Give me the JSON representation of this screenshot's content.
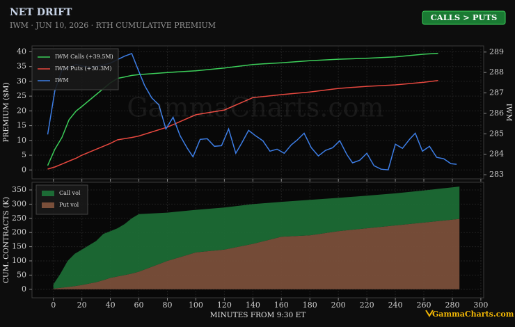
{
  "header": {
    "title": "NET DRIFT",
    "subtitle": "IWM · JUN 10, 2026 · RTH CUMULATIVE PREMIUM"
  },
  "badge": "CALLS > PUTS",
  "watermark": "GammaCharts.com",
  "brand": "GammaCharts.com",
  "chart_data": [
    {
      "type": "line",
      "ylabel": "PREMIUM ($M)",
      "y2label": "IWM",
      "xlim": [
        -15,
        302
      ],
      "ylim": [
        -3,
        42
      ],
      "y2lim": [
        282.8,
        289.3
      ],
      "yticks": [
        0,
        5,
        10,
        15,
        20,
        25,
        30,
        35,
        40
      ],
      "y2ticks": [
        283,
        284,
        285,
        286,
        287,
        288,
        289
      ],
      "grid": true,
      "legend": "upper left",
      "series": [
        {
          "name": "IWM Calls (+39.5M)",
          "color": "#3ccf5a",
          "x": [
            -4,
            1,
            6,
            11,
            16,
            20,
            25,
            30,
            35,
            40,
            45,
            50,
            55,
            60,
            80,
            100,
            120,
            140,
            160,
            180,
            200,
            220,
            240,
            260,
            270
          ],
          "values": [
            1.5,
            7,
            11,
            17,
            20,
            21.5,
            23.5,
            25.5,
            27.5,
            29.5,
            31,
            31.5,
            32,
            32.3,
            33,
            33.6,
            34.5,
            35.7,
            36.3,
            37,
            37.5,
            37.8,
            38.3,
            39.2,
            39.5
          ]
        },
        {
          "name": "IWM Puts (+30.3M)",
          "color": "#e8483f",
          "x": [
            -4,
            1,
            6,
            11,
            16,
            20,
            25,
            30,
            35,
            40,
            45,
            50,
            55,
            60,
            80,
            100,
            120,
            140,
            160,
            180,
            200,
            220,
            240,
            260,
            270
          ],
          "values": [
            0.3,
            1,
            2,
            3,
            4,
            5,
            6,
            7,
            8,
            9,
            10.2,
            10.6,
            11,
            11.5,
            14.5,
            18.7,
            20.3,
            24.5,
            25.5,
            26.4,
            27.6,
            28.3,
            28.8,
            29.7,
            30.3
          ]
        },
        {
          "name": "IWM",
          "color": "#3d7ee6",
          "axis": "y2",
          "x": [
            -4,
            1,
            6,
            11,
            16,
            20,
            25,
            30,
            35,
            40,
            45,
            50,
            55,
            59,
            64,
            69,
            74,
            79,
            84,
            89,
            94,
            98,
            103,
            108,
            113,
            118,
            123,
            128,
            132,
            137,
            142,
            147,
            152,
            157,
            162,
            167,
            171,
            176,
            181,
            186,
            191,
            196,
            201,
            206,
            210,
            215,
            220,
            225,
            230,
            235,
            240,
            245,
            250,
            254,
            259,
            264,
            269,
            274,
            279,
            283
          ],
          "values": [
            284.97,
            287.1,
            288.12,
            288.25,
            288.39,
            288.32,
            288.25,
            288.29,
            288.36,
            288.46,
            288.63,
            288.8,
            288.93,
            288.22,
            287.37,
            286.76,
            286.42,
            285.24,
            285.81,
            284.9,
            284.29,
            283.88,
            284.73,
            284.76,
            284.39,
            284.42,
            285.24,
            284.05,
            284.53,
            285.17,
            284.9,
            284.66,
            284.15,
            284.25,
            284.05,
            284.46,
            284.69,
            285.03,
            284.32,
            283.92,
            284.19,
            284.32,
            284.66,
            283.98,
            283.58,
            283.71,
            284.05,
            283.44,
            283.27,
            283.24,
            284.49,
            284.29,
            284.73,
            285.03,
            284.15,
            284.39,
            283.85,
            283.78,
            283.54,
            283.51
          ]
        }
      ]
    },
    {
      "type": "area",
      "stacked": true,
      "ylabel": "CUM. CONTRACTS (K)",
      "xlabel": "MINUTES FROM 9:30 ET",
      "xlim": [
        -15,
        302
      ],
      "ylim": [
        -30,
        377
      ],
      "xticks": [
        0,
        20,
        40,
        60,
        80,
        100,
        120,
        140,
        160,
        180,
        200,
        220,
        240,
        260,
        280,
        300
      ],
      "yticks": [
        0,
        50,
        100,
        150,
        200,
        250,
        300,
        350
      ],
      "grid": true,
      "legend": "upper left",
      "x": [
        0,
        5,
        10,
        15,
        20,
        25,
        30,
        35,
        40,
        45,
        50,
        55,
        60,
        80,
        100,
        120,
        140,
        160,
        180,
        200,
        220,
        240,
        260,
        285
      ],
      "series": [
        {
          "name": "Put vol",
          "color": "#7a4f3a",
          "values": [
            2,
            5,
            8,
            11,
            15,
            20,
            25,
            32,
            40,
            45,
            50,
            55,
            62,
            100,
            130,
            140,
            160,
            185,
            190,
            205,
            215,
            225,
            235,
            248
          ]
        },
        {
          "name": "Call vol",
          "color": "#1c6b35",
          "values": [
            15,
            50,
            92,
            114,
            125,
            135,
            145,
            163,
            165,
            170,
            180,
            195,
            203,
            170,
            150,
            148,
            140,
            123,
            125,
            117,
            115,
            113,
            113,
            114
          ]
        }
      ]
    }
  ]
}
